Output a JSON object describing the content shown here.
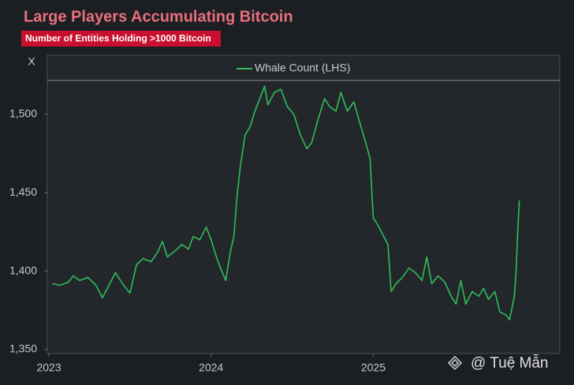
{
  "chart_data": {
    "type": "line",
    "title": "Large Players Accumulating Bitcoin",
    "subtitle": "Number of Entities Holding >1000 Bitcoin",
    "ylabel": "X",
    "watermark": "@ Tuệ Mẫn",
    "x": [
      2023.02,
      2023.07,
      2023.12,
      2023.15,
      2023.19,
      2023.24,
      2023.29,
      2023.33,
      2023.36,
      2023.41,
      2023.46,
      2023.5,
      2023.54,
      2023.58,
      2023.63,
      2023.67,
      2023.7,
      2023.73,
      2023.78,
      2023.82,
      2023.86,
      2023.89,
      2023.93,
      2023.97,
      2024.0,
      2024.02,
      2024.05,
      2024.09,
      2024.12,
      2024.14,
      2024.16,
      2024.18,
      2024.21,
      2024.24,
      2024.27,
      2024.3,
      2024.33,
      2024.35,
      2024.39,
      2024.43,
      2024.47,
      2024.51,
      2024.55,
      2024.59,
      2024.62,
      2024.66,
      2024.7,
      2024.73,
      2024.77,
      2024.8,
      2024.84,
      2024.88,
      2024.91,
      2024.95,
      2024.98,
      2025.0,
      2025.03,
      2025.06,
      2025.09,
      2025.11,
      2025.14,
      2025.18,
      2025.22,
      2025.26,
      2025.3,
      2025.33,
      2025.36,
      2025.4,
      2025.44,
      2025.48,
      2025.51,
      2025.54,
      2025.57,
      2025.61,
      2025.65,
      2025.68,
      2025.71,
      2025.75,
      2025.78,
      2025.82,
      2025.84,
      2025.87,
      2025.88,
      2025.89,
      2025.9
    ],
    "series": [
      {
        "name": "Whale Count (LHS)",
        "color": "#2ebd59",
        "values": [
          1392,
          1391,
          1393,
          1397,
          1394,
          1396,
          1391,
          1383,
          1389,
          1399,
          1391,
          1386,
          1404,
          1408,
          1406,
          1412,
          1419,
          1409,
          1413,
          1417,
          1414,
          1422,
          1420,
          1428,
          1420,
          1413,
          1404,
          1394,
          1413,
          1422,
          1448,
          1467,
          1487,
          1492,
          1502,
          1510,
          1518,
          1506,
          1514,
          1516,
          1505,
          1500,
          1487,
          1478,
          1482,
          1497,
          1510,
          1505,
          1502,
          1514,
          1502,
          1508,
          1497,
          1483,
          1472,
          1434,
          1429,
          1423,
          1417,
          1387,
          1392,
          1396,
          1402,
          1399,
          1394,
          1409,
          1392,
          1397,
          1393,
          1384,
          1379,
          1394,
          1379,
          1387,
          1384,
          1389,
          1382,
          1387,
          1374,
          1372,
          1369,
          1384,
          1399,
          1424,
          1445
        ]
      }
    ],
    "xlim": [
      2022.99,
      2026.15
    ],
    "ylim": [
      1347.5,
      1537.7
    ],
    "xticks": [
      2023,
      2024,
      2025
    ],
    "yticks": [
      {
        "value": 1350,
        "label": "1,350"
      },
      {
        "value": 1400,
        "label": "1,400"
      },
      {
        "value": 1450,
        "label": "1,450"
      },
      {
        "value": 1500,
        "label": "1,500"
      }
    ],
    "legend": "top"
  }
}
